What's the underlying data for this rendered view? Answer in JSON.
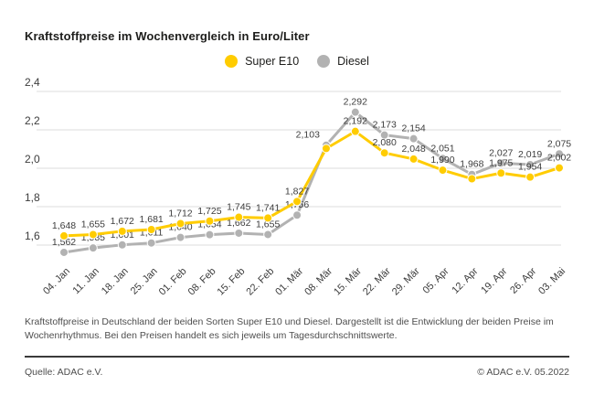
{
  "header": {
    "title": "Kraftstoffpreise im Wochenvergleich in Euro/Liter"
  },
  "legend": {
    "items": [
      {
        "label": "Super E10",
        "color": "#FFCC00"
      },
      {
        "label": "Diesel",
        "color": "#B2B2B2"
      }
    ]
  },
  "chart_data": {
    "type": "line",
    "title": "Kraftstoffpreise im Wochenvergleich in Euro/Liter",
    "unit": "Euro/Liter",
    "grid": true,
    "legend_position": "top-center",
    "ylim": [
      1.5,
      2.45
    ],
    "y_ticks": [
      {
        "label": "2,4",
        "value": 2.4
      },
      {
        "label": "2,2",
        "value": 2.2
      },
      {
        "label": "2,0",
        "value": 2.0
      },
      {
        "label": "1,8",
        "value": 1.8
      },
      {
        "label": "1,6",
        "value": 1.6
      }
    ],
    "categories": [
      "04. Jan",
      "11. Jan",
      "18. Jan",
      "25. Jan",
      "01. Feb",
      "08. Feb",
      "15. Feb",
      "22. Feb",
      "01. Mär",
      "08. Mär",
      "15. Mär",
      "22. Mär",
      "29. Mär",
      "05. Apr",
      "12. Apr",
      "19. Apr",
      "26. Apr",
      "03. Mai"
    ],
    "series": [
      {
        "name": "Diesel",
        "color": "#B2B2B2",
        "values": [
          1.562,
          1.585,
          1.601,
          1.611,
          1.64,
          1.654,
          1.662,
          1.655,
          1.756,
          2.12,
          2.292,
          2.173,
          2.154,
          2.051,
          1.968,
          2.027,
          2.019,
          2.075
        ],
        "labels": [
          "1,562",
          "1,585",
          "1,601",
          "1,611",
          "1,640",
          "1,654",
          "1,662",
          "1,655",
          "1,756",
          null,
          "2,292",
          "2,173",
          "2,154",
          "2,051",
          "1,968",
          "2,027",
          "2,019",
          "2,075"
        ]
      },
      {
        "name": "Super E10",
        "color": "#FFCC00",
        "values": [
          1.648,
          1.655,
          1.672,
          1.681,
          1.712,
          1.725,
          1.745,
          1.741,
          1.827,
          2.103,
          2.192,
          2.08,
          2.048,
          1.99,
          1.945,
          1.975,
          1.954,
          2.002
        ],
        "labels": [
          "1,648",
          "1,655",
          "1,672",
          "1,681",
          "1,712",
          "1,725",
          "1,745",
          "1,741",
          "1,827",
          "2,103",
          "2,192",
          "2,080",
          "2,048",
          "1,990",
          null,
          "1,975",
          "1,954",
          "2,002"
        ],
        "label_overrides": {
          "9": {
            "anchor": "end",
            "dx": -7,
            "dy": -4
          }
        }
      }
    ]
  },
  "footer": {
    "description": "Kraftstoffpreise in Deutschland der beiden Sorten Super E10 und Diesel. Dargestellt ist die Entwicklung der beiden Preise im Wochenrhythmus. Bei den Preisen handelt es sich jeweils um Tagesdurchschnittswerte.",
    "source": "Quelle: ADAC e.V.",
    "copyright": "© ADAC e.V. 05.2022"
  }
}
